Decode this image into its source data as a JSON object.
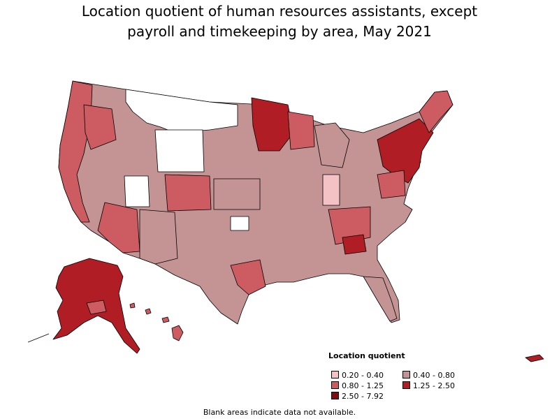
{
  "title_line1": "Location quotient of human resources assistants, except",
  "title_line2": "payroll and timekeeping by area, May 2021",
  "legend": {
    "title": "Location quotient",
    "items": [
      {
        "label": "0.20 - 0.40",
        "color": "#f4c2c5"
      },
      {
        "label": "0.40 - 0.80",
        "color": "#c49494"
      },
      {
        "label": "0.80 - 1.25",
        "color": "#cd5c62"
      },
      {
        "label": "1.25 - 2.50",
        "color": "#b11d24"
      },
      {
        "label": "2.50 - 7.92",
        "color": "#7d0b0f"
      }
    ]
  },
  "footnote": "Blank areas indicate data not available.",
  "colors": {
    "no_data": "#ffffff",
    "border": "#000000"
  }
}
